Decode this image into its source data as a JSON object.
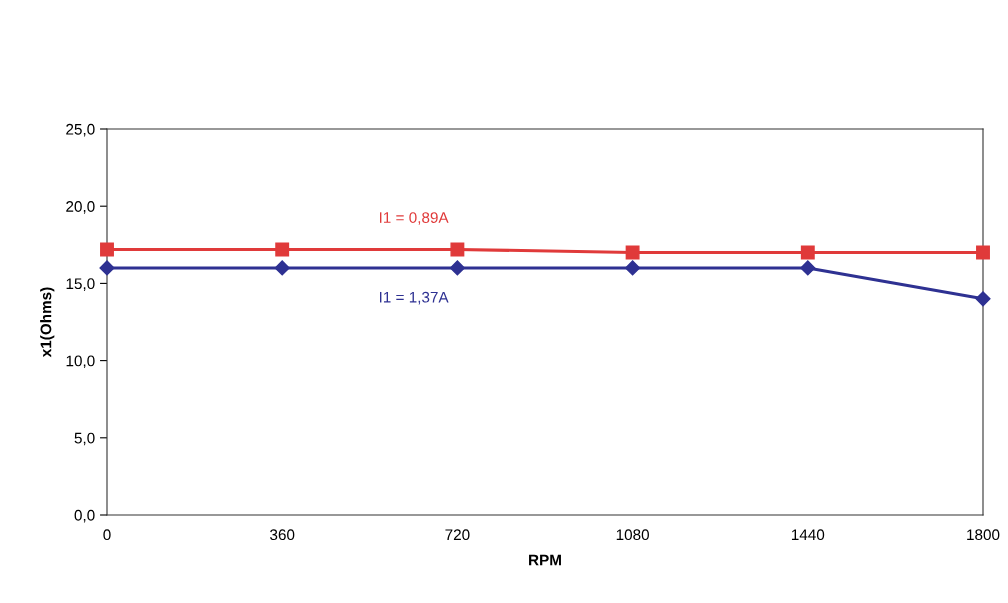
{
  "chart_data": {
    "type": "line",
    "xlabel": "RPM",
    "ylabel": "x1(Ohms)",
    "x": [
      0,
      360,
      720,
      1080,
      1440,
      1800
    ],
    "series": [
      {
        "name": "I1 = 0,89A",
        "color": "#e03a3a",
        "marker": "square",
        "values": [
          17.2,
          17.2,
          17.2,
          17.0,
          17.0,
          17.0
        ]
      },
      {
        "name": "I1 = 1,37A",
        "color": "#2e3192",
        "marker": "diamond",
        "values": [
          16.0,
          16.0,
          16.0,
          16.0,
          16.0,
          14.0
        ]
      }
    ],
    "xlim": [
      0,
      1800
    ],
    "xticks": [
      0,
      360,
      720,
      1080,
      1440,
      1800
    ],
    "ylim": [
      0,
      25
    ],
    "yticks": [
      {
        "value": 0,
        "label": "0,0"
      },
      {
        "value": 5,
        "label": "5,0"
      },
      {
        "value": 10,
        "label": "10,0"
      },
      {
        "value": 15,
        "label": "15,0"
      },
      {
        "value": 20,
        "label": "20,0"
      },
      {
        "value": 25,
        "label": "25,0"
      }
    ],
    "grid": false,
    "legend": false
  }
}
